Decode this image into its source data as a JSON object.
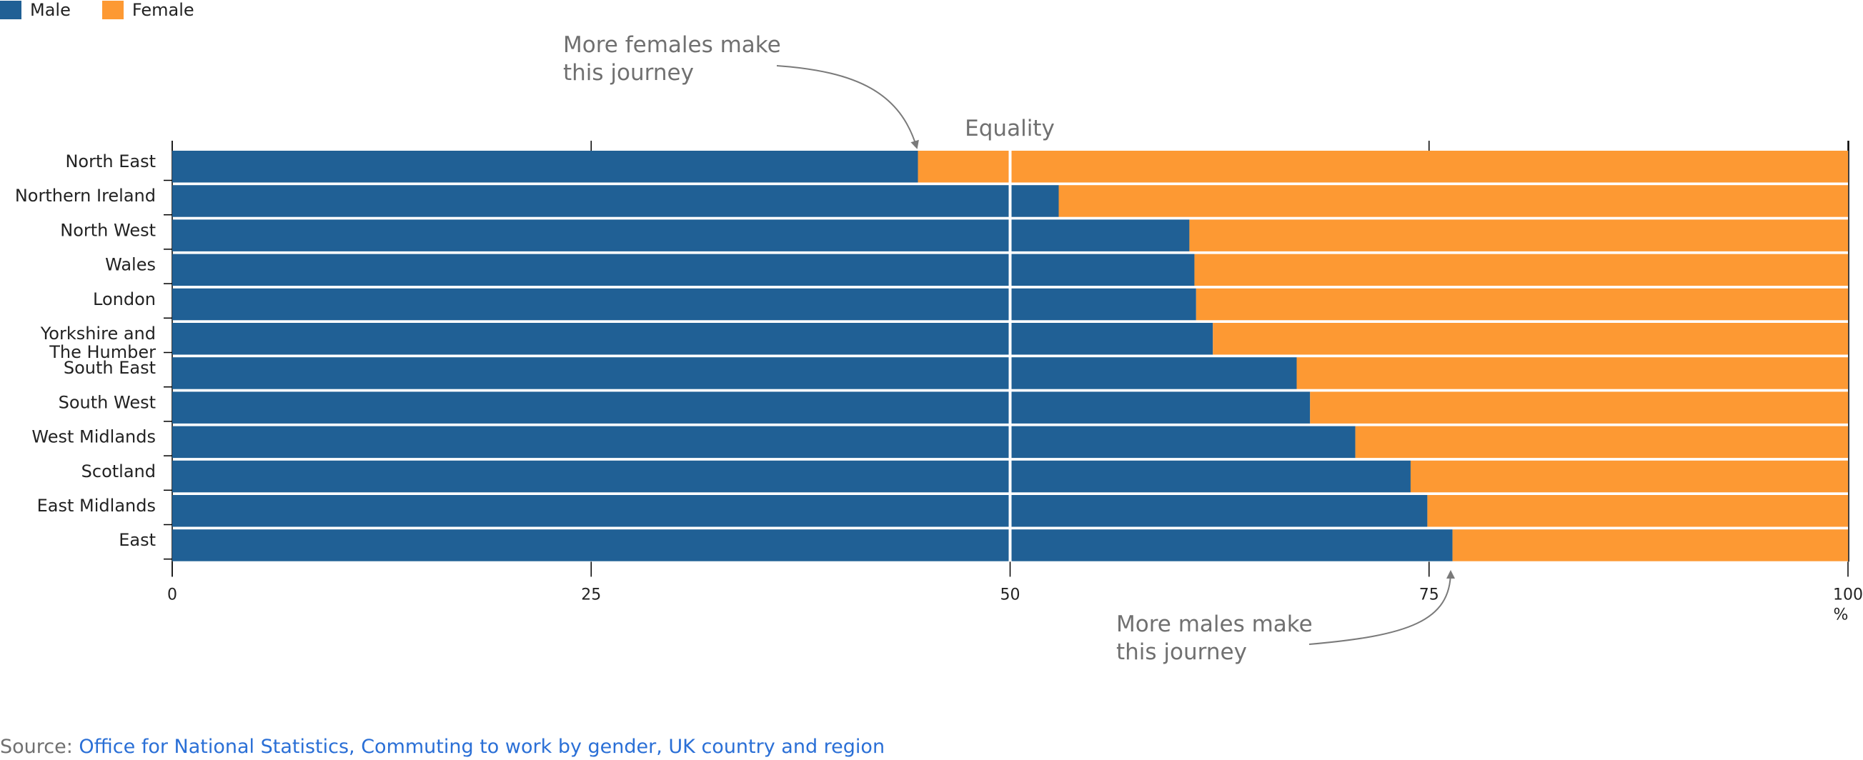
{
  "legend": [
    {
      "label": "Male",
      "color": "#206095"
    },
    {
      "label": "Female",
      "color": "#fd9933"
    }
  ],
  "annotations": {
    "females": [
      "More females make",
      "this journey"
    ],
    "males": [
      "More males make",
      "this journey"
    ],
    "equality": "Equality"
  },
  "source": {
    "prefix": "Source: ",
    "link_text": "Office for National Statistics, Commuting to work by gender, UK country and region"
  },
  "chart_data": {
    "type": "bar",
    "orientation": "horizontal",
    "stacked": true,
    "categories": [
      "North East",
      "Northern Ireland",
      "North West",
      "Wales",
      "London",
      "Yorkshire and The Humber",
      "South East",
      "South West",
      "West Midlands",
      "Scotland",
      "East Midlands",
      "East"
    ],
    "series": [
      {
        "name": "Male",
        "color": "#206095",
        "values": [
          44.5,
          52.9,
          60.7,
          61.0,
          61.1,
          62.1,
          67.1,
          67.9,
          70.6,
          73.9,
          74.9,
          76.4
        ]
      },
      {
        "name": "Female",
        "color": "#fd9933",
        "values": [
          55.5,
          47.1,
          39.3,
          39.0,
          38.9,
          37.9,
          32.9,
          32.1,
          29.4,
          26.1,
          25.1,
          23.6
        ]
      }
    ],
    "x_ticks": [
      "0",
      "25",
      "50",
      "75",
      "100"
    ],
    "x_unit": "%",
    "xlim": [
      0,
      100
    ],
    "reference_line": {
      "value": 50,
      "label": "Equality"
    },
    "legend_position": "top-left"
  }
}
